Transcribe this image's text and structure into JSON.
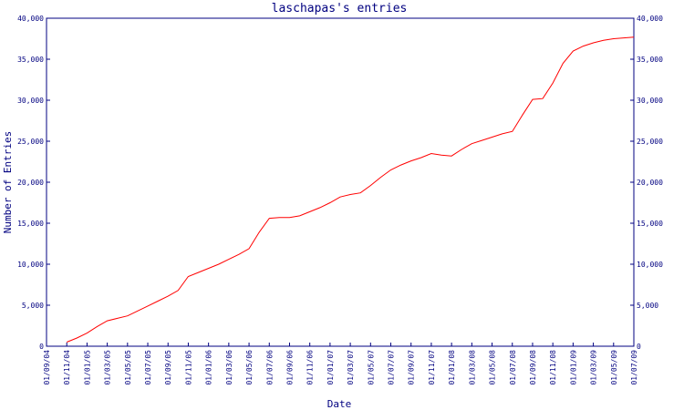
{
  "chart_data": {
    "type": "line",
    "title": "laschapas's entries",
    "xlabel": "Date",
    "ylabel": "Number of Entries",
    "ylim": [
      0,
      40000
    ],
    "y_ticks": [
      {
        "value": 0,
        "label": "0"
      },
      {
        "value": 5000,
        "label": "5,000"
      },
      {
        "value": 10000,
        "label": "10,000"
      },
      {
        "value": 15000,
        "label": "15,000"
      },
      {
        "value": 20000,
        "label": "20,000"
      },
      {
        "value": 25000,
        "label": "25,000"
      },
      {
        "value": 30000,
        "label": "30,000"
      },
      {
        "value": 35000,
        "label": "35,000"
      },
      {
        "value": 40000,
        "label": "40,000"
      }
    ],
    "x_ticks": [
      "01/09/04",
      "01/11/04",
      "01/01/05",
      "01/03/05",
      "01/05/05",
      "01/07/05",
      "01/09/05",
      "01/11/05",
      "01/01/06",
      "01/03/06",
      "01/05/06",
      "01/07/06",
      "01/09/06",
      "01/11/06",
      "01/01/07",
      "01/03/07",
      "01/05/07",
      "01/07/07",
      "01/09/07",
      "01/11/07",
      "01/01/08",
      "01/03/08",
      "01/05/08",
      "01/07/08",
      "01/09/08",
      "01/11/08",
      "01/01/09",
      "01/03/09",
      "01/05/09",
      "01/07/09"
    ],
    "grid": false,
    "right_axis": true,
    "colors": {
      "line": "#ff0000",
      "axis": "#000080",
      "text": "#000080"
    },
    "series": [
      {
        "x": [
          "01/11/04",
          "01/12/04",
          "01/01/05",
          "01/02/05",
          "01/03/05",
          "01/04/05",
          "01/05/05",
          "01/06/05",
          "01/07/05",
          "01/08/05",
          "01/09/05",
          "01/10/05",
          "01/11/05",
          "01/12/05",
          "01/01/06",
          "01/02/06",
          "01/03/06",
          "01/04/06",
          "01/05/06",
          "01/06/06",
          "01/07/06",
          "01/08/06",
          "01/09/06",
          "01/10/06",
          "01/11/06",
          "01/12/06",
          "01/01/07",
          "01/02/07",
          "01/03/07",
          "01/04/07",
          "01/05/07",
          "01/06/07",
          "01/07/07",
          "01/08/07",
          "01/09/07",
          "01/10/07",
          "01/11/07",
          "01/12/07",
          "01/01/08",
          "01/02/08",
          "01/03/08",
          "01/04/08",
          "01/05/08",
          "01/06/08",
          "01/07/08",
          "01/08/08",
          "01/09/08",
          "01/10/08",
          "01/11/08",
          "01/12/08",
          "01/01/09",
          "01/02/09",
          "01/03/09",
          "01/04/09",
          "01/05/09",
          "01/06/09",
          "01/07/09"
        ],
        "values": [
          500,
          1000,
          1600,
          2400,
          3100,
          3400,
          3700,
          4300,
          4900,
          5500,
          6100,
          6800,
          8500,
          9000,
          9500,
          10000,
          10600,
          11200,
          11900,
          13900,
          15600,
          15700,
          15700,
          15900,
          16400,
          16900,
          17500,
          18200,
          18500,
          18700,
          19600,
          20600,
          21500,
          22100,
          22600,
          23000,
          23500,
          23300,
          23200,
          24000,
          24700,
          25100,
          25500,
          25900,
          26200,
          28200,
          30100,
          30200,
          32100,
          34500,
          36000,
          36600,
          37000,
          37300,
          37500,
          37600,
          37700
        ]
      }
    ]
  }
}
